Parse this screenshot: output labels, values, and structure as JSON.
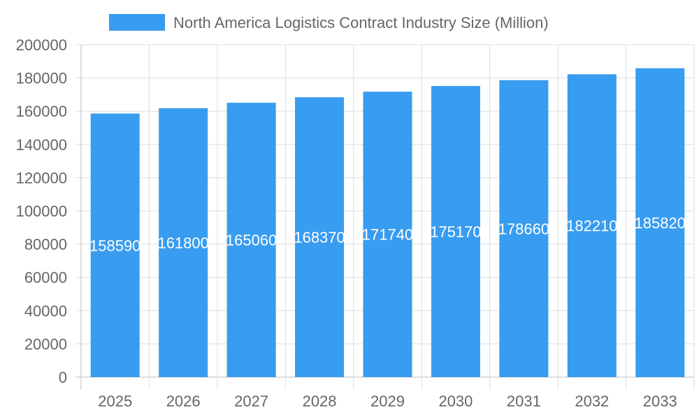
{
  "chart_data": {
    "type": "bar",
    "categories": [
      "2025",
      "2026",
      "2027",
      "2028",
      "2029",
      "2030",
      "2031",
      "2032",
      "2033"
    ],
    "series": [
      {
        "name": "North America Logistics Contract Industry Size (Million)",
        "values": [
          158590,
          161800,
          165060,
          168370,
          171740,
          175170,
          178660,
          182210,
          185820
        ]
      }
    ],
    "ylim": [
      0,
      200000
    ],
    "yticks": [
      0,
      20000,
      40000,
      60000,
      80000,
      100000,
      120000,
      140000,
      160000,
      180000,
      200000
    ],
    "grid": true,
    "legend": "top",
    "data_labels": true,
    "colors": {
      "bar": "#389cf0",
      "grid": "#dddddd",
      "text": "#666666",
      "label": "#ffffff"
    }
  }
}
